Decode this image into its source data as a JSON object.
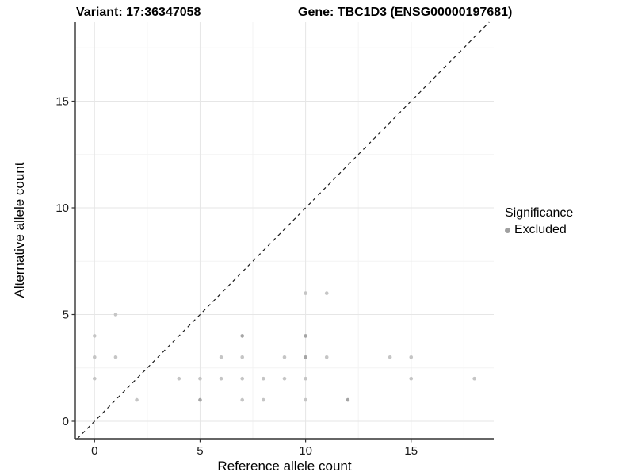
{
  "chart_data": {
    "type": "scatter",
    "titles": {
      "left": "Variant: 17:36347058",
      "right": "Gene: TBC1D3 (ENSG00000197681)"
    },
    "xlabel": "Reference allele count",
    "ylabel": "Alternative allele count",
    "x_ticks": [
      0,
      5,
      10,
      15
    ],
    "y_ticks": [
      0,
      5,
      10,
      15
    ],
    "xlim": [
      -1.0,
      18.9
    ],
    "ylim": [
      -0.85,
      18.7
    ],
    "grid": "major and minor gridlines, white background",
    "reference_line": {
      "style": "dashed",
      "slope": 1,
      "intercept": 0,
      "color": "#1a1a1a",
      "note": "identity line y = x"
    },
    "legend": {
      "title": "Significance",
      "position": "right",
      "items": [
        {
          "label": "Excluded",
          "marker": "circle",
          "marker_color": "#a0a0a0"
        }
      ]
    },
    "series": [
      {
        "name": "Excluded",
        "marker": "circle",
        "color_light": "#c5c5c5",
        "color_overlap": "#a5a5a5",
        "points": [
          {
            "x": 0,
            "y": 4
          },
          {
            "x": 0,
            "y": 3
          },
          {
            "x": 0,
            "y": 2
          },
          {
            "x": 1,
            "y": 5
          },
          {
            "x": 1,
            "y": 3
          },
          {
            "x": 2,
            "y": 1
          },
          {
            "x": 4,
            "y": 2
          },
          {
            "x": 5,
            "y": 2
          },
          {
            "x": 5,
            "y": 1,
            "overlap": true
          },
          {
            "x": 6,
            "y": 3
          },
          {
            "x": 6,
            "y": 2
          },
          {
            "x": 7,
            "y": 4,
            "overlap": true
          },
          {
            "x": 7,
            "y": 3
          },
          {
            "x": 7,
            "y": 2
          },
          {
            "x": 7,
            "y": 1
          },
          {
            "x": 8,
            "y": 2
          },
          {
            "x": 8,
            "y": 1
          },
          {
            "x": 9,
            "y": 3
          },
          {
            "x": 9,
            "y": 2
          },
          {
            "x": 10,
            "y": 6
          },
          {
            "x": 10,
            "y": 4,
            "overlap": true
          },
          {
            "x": 10,
            "y": 3,
            "overlap": true
          },
          {
            "x": 10,
            "y": 2
          },
          {
            "x": 10,
            "y": 1
          },
          {
            "x": 11,
            "y": 6
          },
          {
            "x": 11,
            "y": 3
          },
          {
            "x": 12,
            "y": 1,
            "overlap": true
          },
          {
            "x": 14,
            "y": 3
          },
          {
            "x": 15,
            "y": 3
          },
          {
            "x": 15,
            "y": 2
          },
          {
            "x": 18,
            "y": 2
          }
        ]
      }
    ]
  }
}
